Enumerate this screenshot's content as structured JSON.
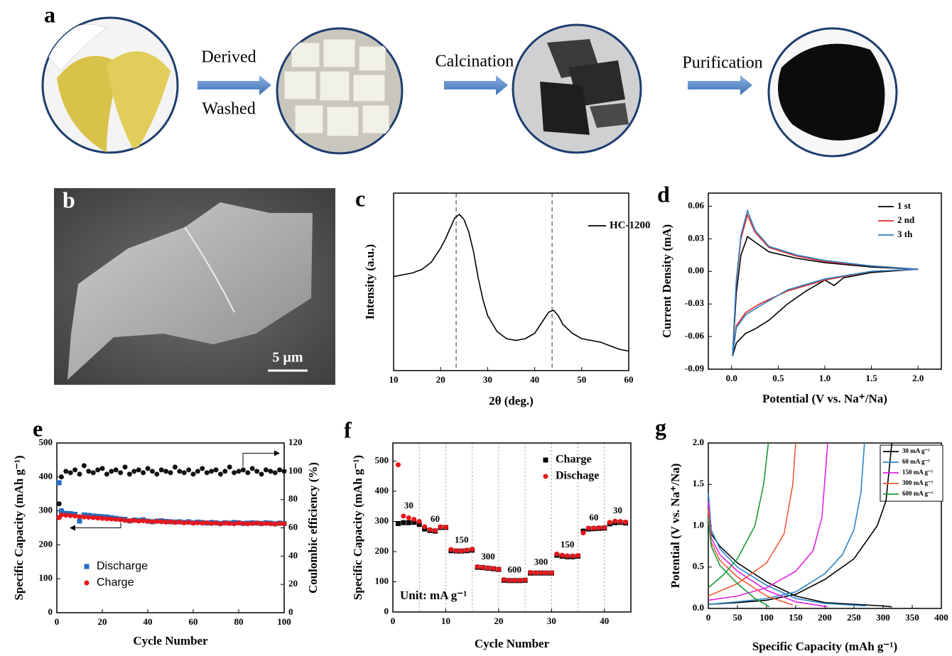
{
  "panel_a": {
    "letter": "a",
    "steps": [
      "Derived",
      "Washed",
      "Calcination",
      "Purification"
    ]
  },
  "panel_b": {
    "letter": "b",
    "scale_bar": "5 µm"
  },
  "chart_data": [
    {
      "type": "line",
      "panel": "c",
      "xlabel": "2θ  (deg.)",
      "ylabel": "Intensity (a.u.)",
      "xlim": [
        10,
        60
      ],
      "xticks": [
        10,
        20,
        30,
        40,
        50,
        60
      ],
      "ylim": [
        0,
        100
      ],
      "vlines": [
        23.3,
        43.7
      ],
      "x": [
        10,
        12,
        14,
        16,
        18,
        20,
        21,
        22,
        23,
        24,
        25,
        26,
        27,
        28,
        29,
        30,
        32,
        34,
        36,
        38,
        40,
        41,
        42,
        43,
        44,
        45,
        46,
        48,
        50,
        52,
        54,
        56,
        58,
        60
      ],
      "series": [
        {
          "name": "HC-1200",
          "color": "#000000",
          "marker": "line",
          "values": [
            53,
            54,
            55,
            57,
            61,
            69,
            74,
            80,
            86,
            88,
            85,
            78,
            67,
            52,
            40,
            31,
            22,
            18,
            17,
            18,
            21,
            25,
            29,
            33,
            34,
            31,
            26,
            21,
            18,
            17,
            16,
            14,
            12,
            11
          ]
        }
      ]
    },
    {
      "type": "line",
      "panel": "d",
      "xlabel": "Potential (V vs. Na⁺/Na)",
      "ylabel": "Current Density (mA)",
      "xlim": [
        -0.25,
        2.25
      ],
      "xticks": [
        {
          "value": 0,
          "label": "0.0"
        },
        0.5,
        {
          "value": 1,
          "label": "1.0"
        },
        1.5,
        {
          "value": 2,
          "label": "2.0"
        }
      ],
      "ylim": [
        -0.09,
        0.072
      ],
      "yticks": [
        -0.09,
        -0.06,
        -0.03,
        {
          "value": 0,
          "label": "0.00"
        },
        0.03,
        0.06
      ],
      "series": [
        {
          "name": "1 st",
          "color": "#000000",
          "marker": "line",
          "x": [
            2.0,
            1.5,
            1.2,
            1.1,
            1.0,
            0.8,
            0.6,
            0.4,
            0.25,
            0.15,
            0.05,
            0.01,
            0.05,
            0.1,
            0.17,
            0.25,
            0.4,
            0.7,
            1.0,
            1.5,
            2.0
          ],
          "values": [
            0.002,
            -0.001,
            -0.006,
            -0.013,
            -0.008,
            -0.018,
            -0.03,
            -0.045,
            -0.053,
            -0.057,
            -0.066,
            -0.078,
            -0.02,
            0.015,
            0.032,
            0.027,
            0.018,
            0.012,
            0.008,
            0.004,
            0.002
          ]
        },
        {
          "name": "2 nd",
          "color": "#e3262b",
          "marker": "line",
          "x": [
            2.0,
            1.5,
            1.0,
            0.6,
            0.3,
            0.15,
            0.05,
            0.01,
            0.05,
            0.1,
            0.17,
            0.25,
            0.4,
            0.7,
            1.0,
            1.5,
            2.0
          ],
          "values": [
            0.002,
            0.0,
            -0.008,
            -0.018,
            -0.03,
            -0.038,
            -0.05,
            -0.077,
            -0.01,
            0.03,
            0.052,
            0.036,
            0.022,
            0.014,
            0.009,
            0.005,
            0.002
          ]
        },
        {
          "name": "3 th",
          "color": "#2b7fc1",
          "marker": "line",
          "x": [
            2.0,
            1.5,
            1.0,
            0.6,
            0.3,
            0.15,
            0.05,
            0.01,
            0.05,
            0.1,
            0.17,
            0.25,
            0.4,
            0.7,
            1.0,
            1.5,
            2.0
          ],
          "values": [
            0.002,
            0.0,
            -0.007,
            -0.017,
            -0.032,
            -0.04,
            -0.052,
            -0.078,
            -0.008,
            0.033,
            0.056,
            0.038,
            0.023,
            0.015,
            0.01,
            0.005,
            0.002
          ]
        }
      ]
    },
    {
      "type": "scatter",
      "panel": "e",
      "xlabel": "Cycle Number",
      "ylabel": "Specific Capacity  (mAh g⁻¹)",
      "y2label": "Coulombic efficiency (%)",
      "xlim": [
        0,
        100
      ],
      "xticks": [
        0,
        20,
        40,
        60,
        80,
        100
      ],
      "ylim": [
        0,
        500
      ],
      "yticks": [
        0,
        100,
        200,
        300,
        400,
        500
      ],
      "y2lim": [
        0,
        120
      ],
      "y2ticks": [
        0,
        20,
        40,
        60,
        80,
        100,
        120
      ],
      "x": [
        1,
        2,
        4,
        6,
        8,
        10,
        12,
        14,
        16,
        18,
        20,
        22,
        24,
        26,
        28,
        30,
        32,
        34,
        36,
        38,
        40,
        42,
        44,
        46,
        48,
        50,
        52,
        54,
        56,
        58,
        60,
        62,
        64,
        66,
        68,
        70,
        72,
        74,
        76,
        78,
        80,
        82,
        84,
        86,
        88,
        90,
        92,
        94,
        96,
        98,
        100
      ],
      "series": [
        {
          "name": "Discharge",
          "color": "#1f6fc4",
          "marker": "square",
          "values": [
            383,
            300,
            293,
            292,
            290,
            270,
            288,
            287,
            285,
            284,
            283,
            282,
            280,
            278,
            276,
            275,
            270,
            273,
            272,
            274,
            270,
            268,
            270,
            271,
            269,
            268,
            267,
            268,
            266,
            268,
            265,
            267,
            266,
            264,
            266,
            265,
            263,
            265,
            264,
            266,
            265,
            263,
            264,
            265,
            264,
            263,
            265,
            264,
            262,
            264,
            263
          ]
        },
        {
          "name": "Charge",
          "color": "#e8161b",
          "marker": "circle",
          "values": [
            280,
            288,
            287,
            286,
            285,
            283,
            282,
            281,
            280,
            279,
            278,
            277,
            276,
            275,
            274,
            272,
            271,
            272,
            270,
            271,
            269,
            268,
            269,
            268,
            267,
            268,
            266,
            267,
            265,
            266,
            264,
            265,
            264,
            265,
            263,
            264,
            262,
            264,
            263,
            262,
            264,
            263,
            262,
            263,
            264,
            262,
            263,
            262,
            261,
            263,
            262
          ]
        },
        {
          "color": "#111111",
          "marker": "circle",
          "axis": "y2",
          "values": [
            77,
            96,
            100,
            99,
            101,
            98,
            104,
            100,
            99,
            101,
            102,
            98,
            100,
            101,
            99,
            103,
            98,
            100,
            101,
            99,
            102,
            100,
            98,
            101,
            100,
            99,
            103,
            100,
            99,
            101,
            98,
            100,
            102,
            99,
            100,
            101,
            98,
            100,
            103,
            99,
            100,
            101,
            99,
            102,
            100,
            98,
            101,
            100,
            99,
            101,
            100
          ]
        }
      ]
    },
    {
      "type": "scatter",
      "panel": "f",
      "xlabel": "Cycle Number",
      "ylabel": "Specific Capacity  (mAh g⁻¹)",
      "annotation": "Unit: mA g⁻¹",
      "xlim": [
        0,
        45
      ],
      "xticks": [
        0,
        10,
        20,
        30,
        40
      ],
      "ylim": [
        0,
        560
      ],
      "yticks": [
        0,
        100,
        200,
        300,
        400,
        500
      ],
      "vlines": [
        5,
        10,
        15,
        20,
        25,
        30,
        35,
        40
      ],
      "rate_labels": [
        30,
        60,
        150,
        300,
        600,
        300,
        150,
        60,
        30
      ],
      "x": [
        1,
        2,
        3,
        4,
        5,
        6,
        7,
        8,
        9,
        10,
        11,
        12,
        13,
        14,
        15,
        16,
        17,
        18,
        19,
        20,
        21,
        22,
        23,
        24,
        25,
        26,
        27,
        28,
        29,
        30,
        31,
        32,
        33,
        34,
        35,
        36,
        37,
        38,
        39,
        40,
        41,
        42,
        43,
        44
      ],
      "series": [
        {
          "name": "Charge",
          "color": "#000000",
          "marker": "square",
          "values": [
            293,
            296,
            296,
            297,
            290,
            275,
            270,
            268,
            280,
            280,
            203,
            202,
            202,
            203,
            205,
            148,
            147,
            145,
            143,
            141,
            105,
            104,
            104,
            104,
            105,
            129,
            129,
            129,
            129,
            129,
            188,
            185,
            183,
            183,
            185,
            268,
            275,
            276,
            277,
            278,
            292,
            296,
            297,
            295
          ]
        },
        {
          "name": "Dischage",
          "color": "#e8161b",
          "marker": "circle",
          "values": [
            488,
            318,
            312,
            307,
            300,
            283,
            273,
            270,
            282,
            281,
            207,
            203,
            203,
            205,
            208,
            150,
            148,
            146,
            144,
            142,
            107,
            105,
            105,
            105,
            106,
            131,
            130,
            130,
            130,
            130,
            192,
            188,
            186,
            186,
            187,
            262,
            278,
            278,
            279,
            280,
            297,
            301,
            300,
            298
          ]
        }
      ]
    },
    {
      "type": "line",
      "panel": "g",
      "xlabel": "Specific Capacity (mAh g⁻¹)",
      "ylabel": "Potential (V vs. Na⁺/Na)",
      "xlim": [
        0,
        400
      ],
      "xticks": [
        0,
        50,
        100,
        150,
        200,
        250,
        300,
        350,
        400
      ],
      "ylim": [
        0,
        2.0
      ],
      "yticks": [
        {
          "value": 0,
          "label": "0.0"
        },
        0.5,
        {
          "value": 1,
          "label": "1.0"
        },
        1.5,
        {
          "value": 2,
          "label": "2.0"
        }
      ],
      "series": [
        {
          "name": "30 mA g⁻¹",
          "color": "#000000",
          "marker": "line",
          "x": [
            0,
            5,
            20,
            50,
            100,
            150,
            200,
            250,
            300,
            315,
            null,
            0,
            50,
            100,
            150,
            200,
            250,
            270,
            290,
            305,
            315
          ],
          "values": [
            1.2,
            0.9,
            0.75,
            0.55,
            0.32,
            0.15,
            0.07,
            0.05,
            0.03,
            0.02,
            null,
            0.05,
            0.07,
            0.1,
            0.17,
            0.35,
            0.6,
            0.8,
            1.0,
            1.3,
            2.0
          ]
        },
        {
          "name": "60 mA g⁻¹",
          "color": "#2b86c8",
          "marker": "line",
          "x": [
            0,
            5,
            20,
            50,
            100,
            150,
            200,
            270,
            null,
            0,
            50,
            100,
            150,
            200,
            230,
            250,
            262,
            268
          ],
          "values": [
            1.4,
            0.95,
            0.72,
            0.5,
            0.28,
            0.12,
            0.06,
            0.03,
            null,
            0.05,
            0.08,
            0.12,
            0.2,
            0.42,
            0.65,
            0.95,
            1.4,
            2.0
          ]
        },
        {
          "name": "150 mA g⁻¹",
          "color": "#e322e3",
          "marker": "line",
          "x": [
            0,
            5,
            20,
            50,
            100,
            150,
            205,
            null,
            0,
            50,
            100,
            150,
            180,
            195,
            205
          ],
          "values": [
            1.3,
            0.85,
            0.65,
            0.45,
            0.22,
            0.08,
            0.02,
            null,
            0.1,
            0.15,
            0.25,
            0.45,
            0.7,
            1.1,
            2.0
          ]
        },
        {
          "name": "300 mA g⁻¹",
          "color": "#f05a3a",
          "marker": "line",
          "x": [
            0,
            5,
            20,
            50,
            100,
            145,
            null,
            0,
            50,
            100,
            130,
            145,
            150
          ],
          "values": [
            1.2,
            0.8,
            0.58,
            0.38,
            0.15,
            0.04,
            null,
            0.15,
            0.3,
            0.55,
            0.9,
            1.5,
            2.0
          ]
        },
        {
          "name": "600 mA g⁻¹",
          "color": "#1a9a3a",
          "marker": "line",
          "x": [
            0,
            5,
            20,
            50,
            80,
            105,
            null,
            0,
            25,
            50,
            80,
            95,
            103
          ],
          "values": [
            1.1,
            0.75,
            0.52,
            0.3,
            0.12,
            0.02,
            null,
            0.25,
            0.4,
            0.6,
            1.0,
            1.5,
            2.0
          ]
        }
      ]
    }
  ]
}
